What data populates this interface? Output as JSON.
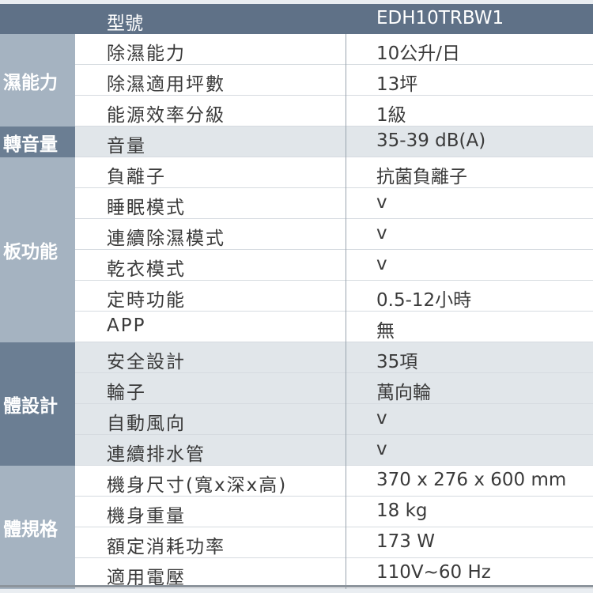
{
  "header": {
    "label": "型號",
    "value": "EDH10TRBW1"
  },
  "colors": {
    "header": "#5f7187",
    "dark_category": "#6b7e93",
    "light_category": "#a5b3c1",
    "shaded_row": "#e1e6ea",
    "plain_row": "#ffffff"
  },
  "groups": [
    {
      "category": "濕能力",
      "shade": "light",
      "rows": [
        {
          "label": "除濕能力",
          "value": "10公升/日"
        },
        {
          "label": "除濕適用坪數",
          "value": "13坪"
        },
        {
          "label": "能源效率分級",
          "value": "1級"
        }
      ]
    },
    {
      "category": "轉音量",
      "shade": "dark",
      "rows": [
        {
          "label": "音量",
          "value": "35-39 dB(A)"
        }
      ]
    },
    {
      "category": "板功能",
      "shade": "light",
      "rows": [
        {
          "label": "負離子",
          "value": "抗菌負離子"
        },
        {
          "label": "睡眠模式",
          "value": "v"
        },
        {
          "label": "連續除濕模式",
          "value": "v"
        },
        {
          "label": "乾衣模式",
          "value": "v"
        },
        {
          "label": "定時功能",
          "value": "0.5-12小時"
        },
        {
          "label": "APP",
          "value": "無"
        }
      ]
    },
    {
      "category": "體設計",
      "shade": "dark",
      "rows": [
        {
          "label": "安全設計",
          "value": "35項"
        },
        {
          "label": "輪子",
          "value": "萬向輪"
        },
        {
          "label": "自動風向",
          "value": "v"
        },
        {
          "label": "連續排水管",
          "value": "v"
        }
      ]
    },
    {
      "category": "體規格",
      "shade": "light",
      "rows": [
        {
          "label": "機身尺寸(寬x深x高)",
          "value": "370 x 276 x 600 mm"
        },
        {
          "label": "機身重量",
          "value": "18 kg"
        },
        {
          "label": "額定消耗功率",
          "value": "173 W"
        },
        {
          "label": "適用電壓",
          "value": "110V~60 Hz"
        }
      ]
    }
  ]
}
